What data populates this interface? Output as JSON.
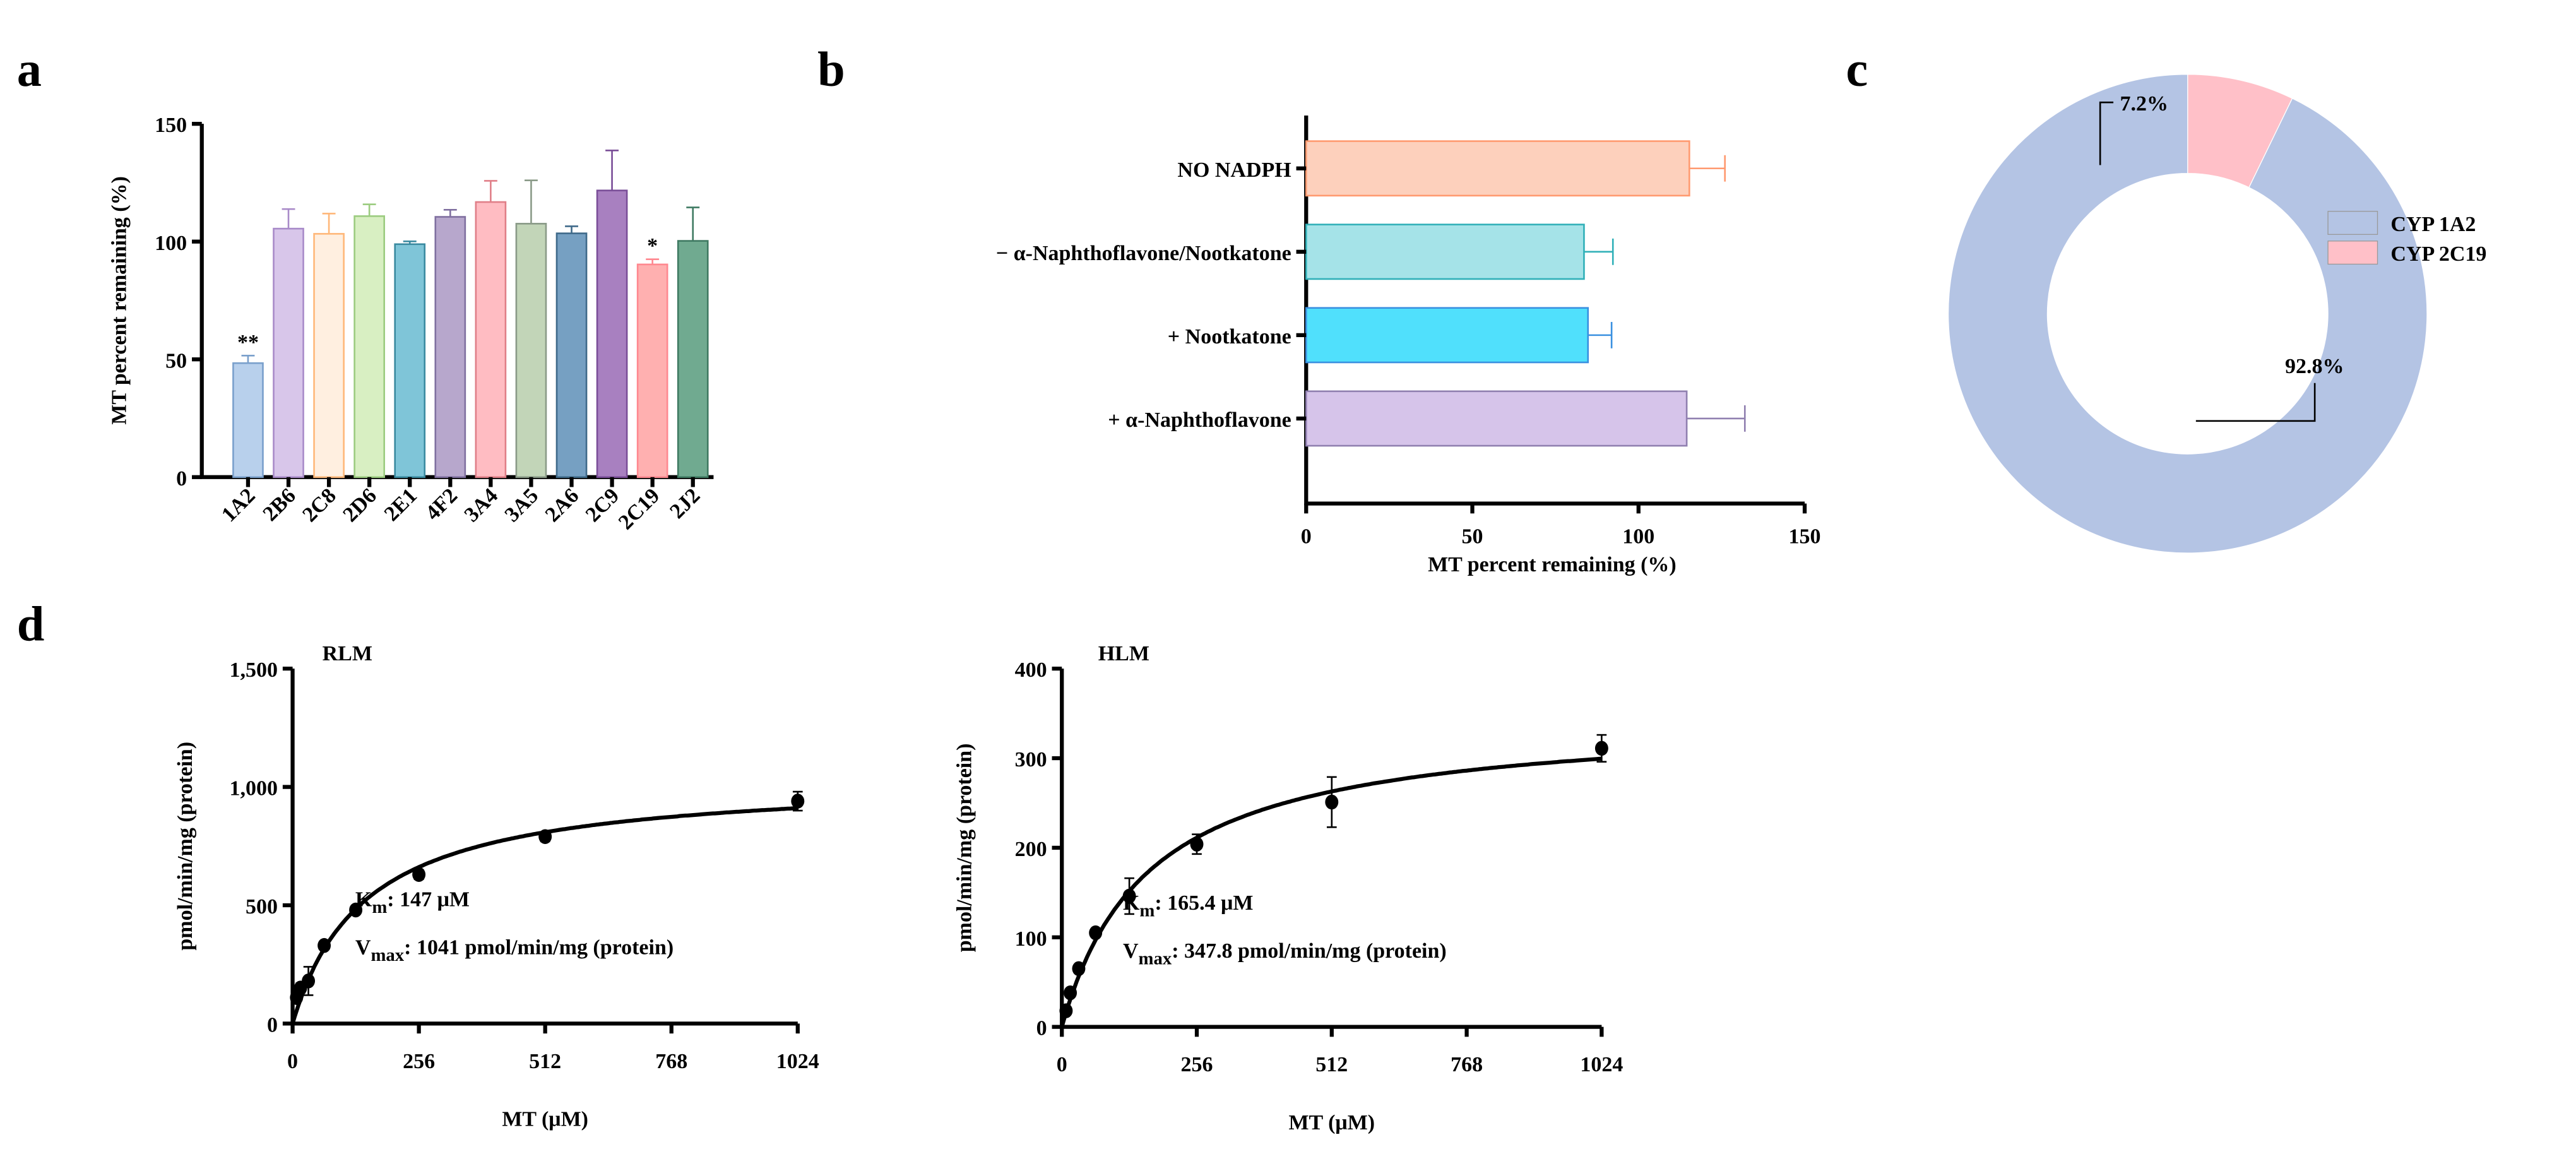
{
  "panels": {
    "a": "a",
    "b": "b",
    "c": "c",
    "d": "d"
  },
  "chart_data": [
    {
      "id": "a",
      "type": "bar",
      "ylabel": "MT percent remaining (%)",
      "ylim": [
        0,
        150
      ],
      "yticks": [
        "0",
        "50",
        "100",
        "150"
      ],
      "categories": [
        "1A2",
        "2B6",
        "2C8",
        "2D6",
        "2E1",
        "4F2",
        "3A4",
        "3A5",
        "2A6",
        "2C9",
        "2C19",
        "2J2"
      ],
      "values": [
        48.4,
        105.5,
        103.3,
        110.8,
        98.9,
        110.5,
        116.8,
        107.6,
        103.5,
        121.7,
        90.3,
        100.3
      ],
      "error_upper": [
        51.6,
        113.8,
        111.9,
        115.8,
        100.1,
        113.5,
        125.8,
        126.0,
        106.5,
        138.7,
        92.5,
        114.5
      ],
      "annotations": [
        "**",
        "",
        "",
        "",
        "",
        "",
        "",
        "",
        "",
        "",
        "*",
        ""
      ],
      "fill": [
        "#b8d0ec",
        "#d8c6ea",
        "#ffefe0",
        "#d8efc2",
        "#7fc5d8",
        "#b7a7cc",
        "#ffbcc2",
        "#c2d5b8",
        "#76a0c2",
        "#a880c0",
        "#ffb0b0",
        "#70aa90"
      ],
      "stroke": [
        "#7aa0cc",
        "#a98bc9",
        "#ffb87a",
        "#9ccc80",
        "#3a8aa0",
        "#8070a0",
        "#e07f88",
        "#8a9a88",
        "#3f6a8a",
        "#7a4e98",
        "#ff8890",
        "#3f7a62"
      ]
    },
    {
      "id": "b",
      "type": "bar",
      "orientation": "horizontal",
      "xlabel": "MT percent remaining (%)",
      "xlim": [
        0,
        150
      ],
      "xticks": [
        "0",
        "50",
        "100",
        "150"
      ],
      "categories": [
        "NO NADPH",
        "− α-Naphthoflavone/Nootkatone",
        "+ Nootkatone",
        "+ α-Naphthoflavone"
      ],
      "values": [
        115.3,
        83.6,
        84.8,
        114.5
      ],
      "error_upper": [
        126.0,
        92.3,
        91.9,
        132.0
      ],
      "fill": [
        "#fdd0bc",
        "#a5e3e8",
        "#50e0fc",
        "#d6c4ea"
      ],
      "stroke": [
        "#ff9a70",
        "#30b0b8",
        "#3a90e0",
        "#9080b0"
      ]
    },
    {
      "id": "c",
      "type": "pie",
      "donut": true,
      "labels": [
        "CYP 1A2",
        "CYP 2C19"
      ],
      "values": [
        92.8,
        7.2
      ],
      "value_labels": [
        "92.8%",
        "7.2%"
      ],
      "colors": [
        "#b4c4e4",
        "#ffc0c8"
      ],
      "legend": "right"
    },
    {
      "id": "d-rlm",
      "type": "scatter",
      "title": "RLM",
      "xlabel": "MT (μM)",
      "ylabel": "pmol/min/mg (protein)",
      "xlim": [
        0,
        1024
      ],
      "ylim": [
        0,
        1500
      ],
      "xticks": [
        "0",
        "256",
        "512",
        "768",
        "1024"
      ],
      "yticks": [
        "0",
        "500",
        "1,000",
        "1,500"
      ],
      "x": [
        8,
        16,
        32,
        64,
        128,
        256,
        512,
        1024
      ],
      "y": [
        110,
        150,
        180,
        330,
        480,
        630,
        790,
        940
      ],
      "err": [
        15,
        20,
        60,
        15,
        15,
        20,
        20,
        40
      ],
      "fit": {
        "model": "Michaelis-Menten",
        "Km": 147,
        "Vmax": 1041
      },
      "km_label": "K",
      "km_sub": "m",
      "km_text": ": 147 μM",
      "vmax_label": "V",
      "vmax_sub": "max",
      "vmax_text": ": 1041 pmol/min/mg (protein)"
    },
    {
      "id": "d-hlm",
      "type": "scatter",
      "title": "HLM",
      "xlabel": "MT (μM)",
      "ylabel": "pmol/min/mg (protein)",
      "xlim": [
        0,
        1024
      ],
      "ylim": [
        0,
        400
      ],
      "xticks": [
        "0",
        "256",
        "512",
        "768",
        "1024"
      ],
      "yticks": [
        "0",
        "100",
        "200",
        "300",
        "400"
      ],
      "x": [
        8,
        16,
        32,
        64,
        128,
        256,
        512,
        1024
      ],
      "y": [
        18,
        38,
        65,
        105,
        146,
        204,
        251,
        311
      ],
      "err": [
        3,
        3,
        4,
        4,
        20,
        11,
        28,
        15
      ],
      "fit": {
        "model": "Michaelis-Menten",
        "Km": 165.4,
        "Vmax": 347.8
      },
      "km_label": "K",
      "km_sub": "m",
      "km_text": ": 165.4 μM",
      "vmax_label": "V",
      "vmax_sub": "max",
      "vmax_text": ": 347.8 pmol/min/mg (protein)"
    }
  ]
}
